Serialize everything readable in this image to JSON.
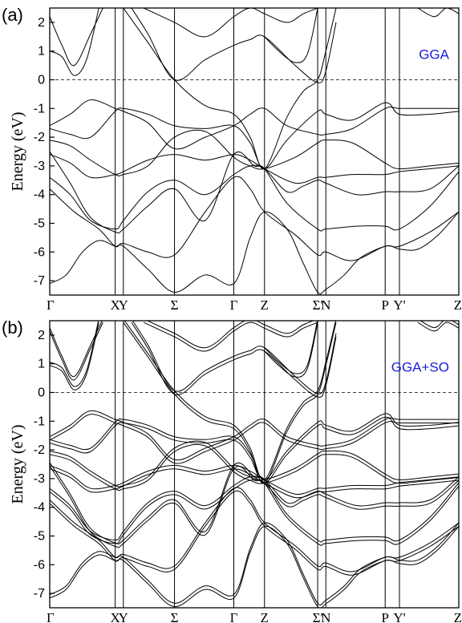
{
  "chart_data": [
    {
      "type": "line",
      "panel_label": "(a)",
      "method": "GGA",
      "ylabel": "Energy (eV)",
      "ylim": [
        -7.5,
        2.5
      ],
      "yticks": [
        2,
        1,
        0,
        -1,
        -2,
        -3,
        -4,
        -5,
        -6,
        -7
      ],
      "fermi_level": 0,
      "kpoints": [
        {
          "label": "Γ",
          "x": 0
        },
        {
          "label": "X",
          "x": 0.16
        },
        {
          "label": "Y",
          "x": 0.18
        },
        {
          "label": "Σ",
          "x": 0.305
        },
        {
          "label": "Γ",
          "x": 0.45
        },
        {
          "label": "Z",
          "x": 0.525
        },
        {
          "label": "Σ'",
          "x": 0.655
        },
        {
          "label": "N",
          "x": 0.675
        },
        {
          "label": "P",
          "x": 0.82
        },
        {
          "label": "Y'",
          "x": 0.855
        },
        {
          "label": "Z",
          "x": 1.0
        }
      ],
      "x_kpaths": [
        0,
        0.16,
        0.18,
        0.305,
        0.45,
        0.525,
        0.655,
        0.675,
        0.82,
        0.855,
        1.0
      ],
      "series": [
        {
          "x": [
            0,
            0.04,
            0.08,
            0.12,
            0.16,
            0.18,
            0.24,
            0.305,
            0.38,
            0.45,
            0.49,
            0.525,
            0.58,
            0.62,
            0.655,
            0.675,
            0.72,
            0.76,
            0.82,
            0.855,
            0.93,
            1.0
          ],
          "y": [
            -7.1,
            -6.8,
            -6.0,
            -5.6,
            -5.8,
            -5.8,
            -6.6,
            -7.4,
            -6.8,
            -7.1,
            -5.5,
            -4.6,
            -5.2,
            -6.4,
            -7.4,
            -7.3,
            -6.8,
            -6.2,
            -5.8,
            -5.8,
            -5.3,
            -4.6
          ]
        },
        {
          "x": [
            0,
            0.06,
            0.12,
            0.16,
            0.18,
            0.24,
            0.305,
            0.38,
            0.45,
            0.49,
            0.525,
            0.6,
            0.655,
            0.675,
            0.74,
            0.82,
            0.855,
            0.9,
            0.95,
            1.0
          ],
          "y": [
            -3.8,
            -4.6,
            -5.2,
            -5.8,
            -5.7,
            -6.0,
            -6.1,
            -4.6,
            -3.4,
            -3.8,
            -4.6,
            -5.4,
            -6.1,
            -6.0,
            -6.3,
            -5.8,
            -5.9,
            -5.9,
            -5.4,
            -4.6
          ]
        },
        {
          "x": [
            0,
            0.05,
            0.1,
            0.16,
            0.18,
            0.24,
            0.305,
            0.38,
            0.45,
            0.5,
            0.525,
            0.58,
            0.655,
            0.675,
            0.75,
            0.82,
            0.855,
            0.93,
            1.0
          ],
          "y": [
            -2.5,
            -3.6,
            -4.8,
            -5.3,
            -5.2,
            -4.4,
            -3.8,
            -4.9,
            -2.6,
            -3.0,
            -3.1,
            -4.3,
            -5.2,
            -5.2,
            -5.1,
            -5.1,
            -5.2,
            -4.4,
            -3.2
          ]
        },
        {
          "x": [
            0,
            0.05,
            0.1,
            0.16,
            0.18,
            0.24,
            0.305,
            0.38,
            0.45,
            0.49,
            0.525,
            0.58,
            0.62,
            0.655,
            0.675,
            0.75,
            0.82,
            0.855,
            0.93,
            1.0
          ],
          "y": [
            -3.4,
            -4.0,
            -4.9,
            -5.2,
            -4.9,
            -3.9,
            -3.5,
            -4.0,
            -3.3,
            -3.0,
            -3.1,
            -3.9,
            -3.7,
            -3.5,
            -3.6,
            -4.0,
            -3.9,
            -3.9,
            -3.8,
            -3.0
          ]
        },
        {
          "x": [
            0,
            0.05,
            0.1,
            0.16,
            0.18,
            0.24,
            0.305,
            0.38,
            0.45,
            0.49,
            0.525,
            0.6,
            0.655,
            0.675,
            0.74,
            0.82,
            0.855,
            0.93,
            1.0
          ],
          "y": [
            -2.6,
            -2.9,
            -3.4,
            -3.3,
            -3.2,
            -2.8,
            -2.6,
            -2.8,
            -2.6,
            -2.8,
            -3.1,
            -3.6,
            -3.4,
            -3.4,
            -3.3,
            -3.3,
            -3.2,
            -3.1,
            -3.0
          ]
        },
        {
          "x": [
            0,
            0.05,
            0.1,
            0.16,
            0.18,
            0.24,
            0.305,
            0.38,
            0.45,
            0.49,
            0.525,
            0.6,
            0.655,
            0.675,
            0.74,
            0.82,
            0.855,
            0.93,
            1.0
          ],
          "y": [
            -2.1,
            -2.3,
            -2.8,
            -3.3,
            -3.3,
            -3.0,
            -2.0,
            -1.8,
            -2.7,
            -3.0,
            -3.1,
            -2.7,
            -2.2,
            -2.1,
            -2.2,
            -2.9,
            -3.1,
            -3.0,
            -2.9
          ]
        },
        {
          "x": [
            0,
            0.05,
            0.1,
            0.16,
            0.18,
            0.24,
            0.305,
            0.38,
            0.45,
            0.49,
            0.525,
            0.58,
            0.655,
            0.675,
            0.74,
            0.82,
            0.855,
            0.93,
            1.0
          ],
          "y": [
            -1.6,
            -1.2,
            -0.7,
            -1.0,
            -1.1,
            -1.5,
            -2.4,
            -2.0,
            -1.6,
            -1.2,
            -1.0,
            -1.6,
            -1.9,
            -1.9,
            -1.7,
            -1.0,
            -1.0,
            -1.0,
            -1.0
          ]
        },
        {
          "x": [
            0,
            0.05,
            0.1,
            0.16,
            0.18,
            0.24,
            0.305,
            0.38,
            0.45,
            0.49,
            0.525,
            0.58,
            0.655,
            0.675,
            0.74,
            0.82,
            0.855,
            0.93,
            1.0
          ],
          "y": [
            -1.7,
            -1.9,
            -2.0,
            -1.1,
            -1.0,
            -1.2,
            -1.6,
            -1.7,
            -1.6,
            -2.2,
            -3.1,
            -2.1,
            -1.1,
            -1.2,
            -1.4,
            -0.8,
            -1.2,
            -1.2,
            -1.1
          ]
        },
        {
          "x": [
            0,
            0.03,
            0.06,
            0.09,
            0.12
          ],
          "y": [
            1.0,
            0.8,
            0.15,
            0.7,
            2.5
          ]
        },
        {
          "x": [
            0,
            0.03,
            0.06,
            0.1,
            0.13
          ],
          "y": [
            2.2,
            1.2,
            0.5,
            1.6,
            2.5
          ]
        },
        {
          "x": [
            0.18,
            0.24,
            0.305,
            0.38,
            0.45,
            0.49,
            0.525,
            0.58,
            0.62,
            0.655,
            0.675,
            0.7
          ],
          "y": [
            2.5,
            1.3,
            0.0,
            -0.9,
            -1.2,
            -2.0,
            -3.1,
            -1.3,
            -0.4,
            0.0,
            1.0,
            2.5
          ]
        },
        {
          "x": [
            0.2,
            0.24,
            0.305,
            0.38,
            0.45,
            0.49,
            0.525,
            0.6,
            0.655,
            0.675,
            0.7
          ],
          "y": [
            2.5,
            1.6,
            0.0,
            0.7,
            1.2,
            1.4,
            1.5,
            0.5,
            -0.1,
            0.3,
            2.0
          ]
        },
        {
          "x": [
            0.23,
            0.305,
            0.38,
            0.45,
            0.49,
            0.525,
            0.58,
            0.62,
            0.655
          ],
          "y": [
            2.5,
            2.0,
            1.5,
            2.2,
            2.5,
            2.3,
            2.0,
            2.3,
            2.5
          ]
        },
        {
          "x": [
            0.525,
            0.56,
            0.6,
            0.63,
            0.655
          ],
          "y": [
            1.5,
            1.0,
            0.6,
            0.9,
            2.5
          ]
        },
        {
          "x": [
            0.9,
            0.94,
            0.97,
            1.0
          ],
          "y": [
            2.5,
            2.2,
            2.5,
            2.3
          ]
        }
      ]
    },
    {
      "type": "line",
      "panel_label": "(b)",
      "method": "GGA+SO",
      "ylabel": "Energy (eV)",
      "ylim": [
        -7.5,
        2.5
      ],
      "yticks": [
        2,
        1,
        0,
        -1,
        -2,
        -3,
        -4,
        -5,
        -6,
        -7
      ],
      "fermi_level": 0,
      "kpoints": [
        {
          "label": "Γ",
          "x": 0
        },
        {
          "label": "X",
          "x": 0.16
        },
        {
          "label": "Y",
          "x": 0.18
        },
        {
          "label": "Σ",
          "x": 0.305
        },
        {
          "label": "Γ",
          "x": 0.45
        },
        {
          "label": "Z",
          "x": 0.525
        },
        {
          "label": "Σ'",
          "x": 0.655
        },
        {
          "label": "N",
          "x": 0.675
        },
        {
          "label": "P",
          "x": 0.82
        },
        {
          "label": "Y'",
          "x": 0.855
        },
        {
          "label": "Z",
          "x": 1.0
        }
      ],
      "x_kpaths": [
        0,
        0.16,
        0.18,
        0.305,
        0.45,
        0.525,
        0.655,
        0.675,
        0.82,
        0.855,
        1.0
      ],
      "series": [
        {
          "x": [
            0,
            0.04,
            0.08,
            0.12,
            0.16,
            0.18,
            0.24,
            0.305,
            0.38,
            0.45,
            0.49,
            0.525,
            0.58,
            0.62,
            0.655,
            0.675,
            0.72,
            0.76,
            0.82,
            0.855,
            0.93,
            1.0
          ],
          "y": [
            -7.1,
            -6.8,
            -6.0,
            -5.6,
            -5.8,
            -5.8,
            -6.6,
            -7.4,
            -6.8,
            -7.1,
            -5.5,
            -4.6,
            -5.2,
            -6.4,
            -7.4,
            -7.3,
            -6.8,
            -6.2,
            -5.8,
            -5.8,
            -5.3,
            -4.6
          ]
        },
        {
          "x": [
            0,
            0.06,
            0.12,
            0.16,
            0.18,
            0.24,
            0.305,
            0.38,
            0.45,
            0.49,
            0.525,
            0.6,
            0.655,
            0.675,
            0.74,
            0.82,
            0.855,
            0.9,
            0.95,
            1.0
          ],
          "y": [
            -3.8,
            -4.6,
            -5.2,
            -5.8,
            -5.7,
            -6.0,
            -6.1,
            -4.6,
            -3.4,
            -3.8,
            -4.6,
            -5.4,
            -6.1,
            -6.0,
            -6.3,
            -5.8,
            -5.9,
            -5.9,
            -5.4,
            -4.6
          ]
        },
        {
          "x": [
            0,
            0.05,
            0.1,
            0.16,
            0.18,
            0.24,
            0.305,
            0.38,
            0.45,
            0.5,
            0.525,
            0.58,
            0.655,
            0.675,
            0.75,
            0.82,
            0.855,
            0.93,
            1.0
          ],
          "y": [
            -2.5,
            -3.6,
            -4.8,
            -5.3,
            -5.2,
            -4.4,
            -3.8,
            -4.9,
            -2.6,
            -3.0,
            -3.1,
            -4.3,
            -5.2,
            -5.2,
            -5.1,
            -5.1,
            -5.2,
            -4.4,
            -3.2
          ]
        },
        {
          "x": [
            0,
            0.05,
            0.1,
            0.16,
            0.18,
            0.24,
            0.305,
            0.38,
            0.45,
            0.49,
            0.525,
            0.58,
            0.62,
            0.655,
            0.675,
            0.75,
            0.82,
            0.855,
            0.93,
            1.0
          ],
          "y": [
            -3.4,
            -4.0,
            -4.9,
            -5.2,
            -4.9,
            -3.9,
            -3.5,
            -4.0,
            -3.3,
            -3.0,
            -3.1,
            -3.9,
            -3.7,
            -3.5,
            -3.6,
            -4.0,
            -3.9,
            -3.9,
            -3.8,
            -3.0
          ]
        },
        {
          "x": [
            0,
            0.05,
            0.1,
            0.16,
            0.18,
            0.24,
            0.305,
            0.38,
            0.45,
            0.49,
            0.525,
            0.6,
            0.655,
            0.675,
            0.74,
            0.82,
            0.855,
            0.93,
            1.0
          ],
          "y": [
            -2.6,
            -2.9,
            -3.4,
            -3.3,
            -3.2,
            -2.8,
            -2.6,
            -2.8,
            -2.6,
            -2.8,
            -3.1,
            -3.6,
            -3.4,
            -3.4,
            -3.3,
            -3.3,
            -3.2,
            -3.1,
            -3.0
          ]
        },
        {
          "x": [
            0,
            0.05,
            0.1,
            0.16,
            0.18,
            0.24,
            0.305,
            0.38,
            0.45,
            0.49,
            0.525,
            0.6,
            0.655,
            0.675,
            0.74,
            0.82,
            0.855,
            0.93,
            1.0
          ],
          "y": [
            -2.1,
            -2.3,
            -2.8,
            -3.3,
            -3.3,
            -3.0,
            -2.0,
            -1.8,
            -2.7,
            -3.0,
            -3.1,
            -2.7,
            -2.2,
            -2.1,
            -2.2,
            -2.9,
            -3.1,
            -3.0,
            -2.9
          ]
        },
        {
          "x": [
            0,
            0.05,
            0.1,
            0.16,
            0.18,
            0.24,
            0.305,
            0.38,
            0.45,
            0.49,
            0.525,
            0.58,
            0.655,
            0.675,
            0.74,
            0.82,
            0.855,
            0.93,
            1.0
          ],
          "y": [
            -1.6,
            -1.2,
            -0.7,
            -1.0,
            -1.1,
            -1.5,
            -2.4,
            -2.0,
            -1.6,
            -1.2,
            -1.0,
            -1.6,
            -1.9,
            -1.9,
            -1.7,
            -1.0,
            -1.0,
            -1.0,
            -1.0
          ]
        },
        {
          "x": [
            0,
            0.05,
            0.1,
            0.16,
            0.18,
            0.24,
            0.305,
            0.38,
            0.45,
            0.49,
            0.525,
            0.58,
            0.655,
            0.675,
            0.74,
            0.82,
            0.855,
            0.93,
            1.0
          ],
          "y": [
            -1.7,
            -1.9,
            -2.0,
            -1.1,
            -1.0,
            -1.2,
            -1.6,
            -1.7,
            -1.6,
            -2.2,
            -3.1,
            -2.1,
            -1.1,
            -1.2,
            -1.4,
            -0.8,
            -1.2,
            -1.2,
            -1.1
          ]
        },
        {
          "x": [
            0,
            0.03,
            0.06,
            0.09,
            0.12
          ],
          "y": [
            1.0,
            0.8,
            0.15,
            0.7,
            2.5
          ]
        },
        {
          "x": [
            0,
            0.03,
            0.06,
            0.1,
            0.13
          ],
          "y": [
            2.2,
            1.2,
            0.5,
            1.6,
            2.5
          ]
        },
        {
          "x": [
            0.18,
            0.24,
            0.305,
            0.38,
            0.45,
            0.49,
            0.525,
            0.58,
            0.62,
            0.655,
            0.675,
            0.7
          ],
          "y": [
            2.5,
            1.3,
            0.0,
            -0.9,
            -1.2,
            -2.0,
            -3.1,
            -1.3,
            -0.4,
            0.0,
            1.0,
            2.5
          ]
        },
        {
          "x": [
            0.2,
            0.24,
            0.305,
            0.38,
            0.45,
            0.49,
            0.525,
            0.6,
            0.655,
            0.675,
            0.7
          ],
          "y": [
            2.5,
            1.6,
            0.0,
            0.7,
            1.2,
            1.4,
            1.5,
            0.5,
            -0.1,
            0.3,
            2.0
          ]
        },
        {
          "x": [
            0.23,
            0.305,
            0.38,
            0.45,
            0.49,
            0.525,
            0.58,
            0.62,
            0.655
          ],
          "y": [
            2.5,
            2.0,
            1.5,
            2.2,
            2.5,
            2.3,
            2.0,
            2.3,
            2.5
          ]
        },
        {
          "x": [
            0.525,
            0.56,
            0.6,
            0.63,
            0.655
          ],
          "y": [
            1.5,
            1.0,
            0.6,
            0.9,
            2.5
          ]
        },
        {
          "x": [
            0.9,
            0.94,
            0.97,
            1.0
          ],
          "y": [
            2.5,
            2.2,
            2.5,
            2.3
          ]
        }
      ],
      "so_split": 0.12
    }
  ]
}
